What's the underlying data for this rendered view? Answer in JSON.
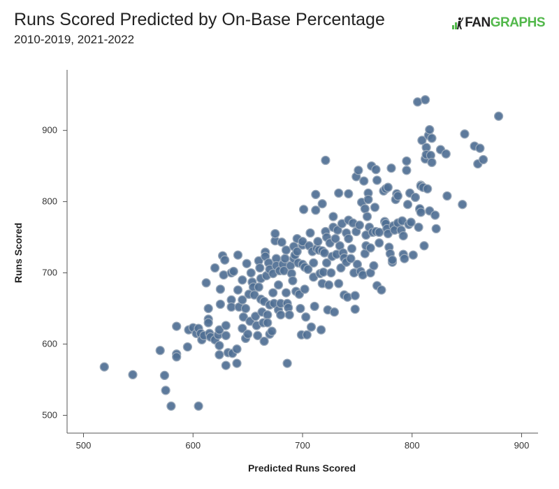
{
  "header": {
    "title": "Runs Scored Predicted by On-Base Percentage",
    "subtitle": "2010-2019, 2021-2022"
  },
  "logo": {
    "fan": "FAN",
    "graphs": "GRAPHS"
  },
  "colors": {
    "point_fill": "#4f6f94",
    "point_stroke": "#9aa9ba",
    "brand_green": "#52b84b",
    "axis": "#555555"
  },
  "chart_data": {
    "type": "scatter",
    "title": "Runs Scored Predicted by On-Base Percentage",
    "subtitle": "2010-2019, 2021-2022",
    "xlabel": "Predicted Runs Scored",
    "ylabel": "Runs Scored",
    "xlim": [
      485,
      915
    ],
    "ylim": [
      475,
      985
    ],
    "xticks": [
      500,
      600,
      700,
      800,
      900
    ],
    "yticks": [
      500,
      600,
      700,
      800,
      900
    ],
    "grid": false,
    "points": [
      [
        519,
        568
      ],
      [
        545,
        557
      ],
      [
        570,
        591
      ],
      [
        574,
        556
      ],
      [
        575,
        535
      ],
      [
        580,
        513
      ],
      [
        585,
        586
      ],
      [
        585,
        582
      ],
      [
        585,
        625
      ],
      [
        595,
        596
      ],
      [
        596,
        620
      ],
      [
        600,
        623
      ],
      [
        603,
        615
      ],
      [
        605,
        622
      ],
      [
        605,
        513
      ],
      [
        607,
        615
      ],
      [
        608,
        606
      ],
      [
        610,
        612
      ],
      [
        612,
        686
      ],
      [
        614,
        650
      ],
      [
        614,
        635
      ],
      [
        614,
        630
      ],
      [
        615,
        615
      ],
      [
        616,
        610
      ],
      [
        620,
        606
      ],
      [
        620,
        707
      ],
      [
        623,
        613
      ],
      [
        624,
        620
      ],
      [
        624,
        598
      ],
      [
        624,
        585
      ],
      [
        625,
        677
      ],
      [
        625,
        656
      ],
      [
        627,
        724
      ],
      [
        628,
        697
      ],
      [
        629,
        718
      ],
      [
        630,
        612
      ],
      [
        630,
        626
      ],
      [
        630,
        570
      ],
      [
        632,
        588
      ],
      [
        635,
        700
      ],
      [
        635,
        662
      ],
      [
        635,
        652
      ],
      [
        636,
        587
      ],
      [
        637,
        702
      ],
      [
        640,
        573
      ],
      [
        640,
        593
      ],
      [
        641,
        676
      ],
      [
        641,
        725
      ],
      [
        642,
        652
      ],
      [
        645,
        662
      ],
      [
        645,
        690
      ],
      [
        645,
        622
      ],
      [
        646,
        638
      ],
      [
        648,
        650
      ],
      [
        648,
        608
      ],
      [
        649,
        713
      ],
      [
        650,
        614
      ],
      [
        651,
        670
      ],
      [
        652,
        632
      ],
      [
        653,
        700
      ],
      [
        654,
        687
      ],
      [
        655,
        680
      ],
      [
        656,
        669
      ],
      [
        657,
        639
      ],
      [
        658,
        626
      ],
      [
        659,
        612
      ],
      [
        660,
        680
      ],
      [
        660,
        717
      ],
      [
        661,
        707
      ],
      [
        662,
        663
      ],
      [
        662,
        692
      ],
      [
        663,
        645
      ],
      [
        664,
        630
      ],
      [
        665,
        660
      ],
      [
        665,
        604
      ],
      [
        666,
        729
      ],
      [
        666,
        723
      ],
      [
        667,
        696
      ],
      [
        668,
        641
      ],
      [
        668,
        630
      ],
      [
        669,
        714
      ],
      [
        670,
        705
      ],
      [
        670,
        655
      ],
      [
        670,
        614
      ],
      [
        672,
        618
      ],
      [
        673,
        672
      ],
      [
        673,
        699
      ],
      [
        674,
        657
      ],
      [
        675,
        745
      ],
      [
        675,
        755
      ],
      [
        676,
        720
      ],
      [
        676,
        710
      ],
      [
        678,
        683
      ],
      [
        678,
        648
      ],
      [
        679,
        703
      ],
      [
        680,
        657
      ],
      [
        680,
        641
      ],
      [
        681,
        743
      ],
      [
        682,
        712
      ],
      [
        683,
        703
      ],
      [
        684,
        720
      ],
      [
        685,
        732
      ],
      [
        685,
        672
      ],
      [
        686,
        657
      ],
      [
        686,
        573
      ],
      [
        687,
        651
      ],
      [
        688,
        641
      ],
      [
        689,
        710
      ],
      [
        690,
        699
      ],
      [
        691,
        689
      ],
      [
        692,
        720
      ],
      [
        692,
        737
      ],
      [
        693,
        725
      ],
      [
        694,
        674
      ],
      [
        695,
        730
      ],
      [
        695,
        748
      ],
      [
        696,
        714
      ],
      [
        697,
        670
      ],
      [
        698,
        650
      ],
      [
        699,
        613
      ],
      [
        700,
        712
      ],
      [
        700,
        739
      ],
      [
        700,
        744
      ],
      [
        701,
        789
      ],
      [
        702,
        708
      ],
      [
        702,
        677
      ],
      [
        703,
        638
      ],
      [
        704,
        613
      ],
      [
        705,
        705
      ],
      [
        706,
        738
      ],
      [
        707,
        756
      ],
      [
        708,
        624
      ],
      [
        709,
        730
      ],
      [
        710,
        714
      ],
      [
        710,
        694
      ],
      [
        711,
        653
      ],
      [
        712,
        810
      ],
      [
        712,
        788
      ],
      [
        713,
        734
      ],
      [
        714,
        744
      ],
      [
        715,
        732
      ],
      [
        716,
        699
      ],
      [
        717,
        620
      ],
      [
        718,
        797
      ],
      [
        718,
        731
      ],
      [
        718,
        685
      ],
      [
        719,
        701
      ],
      [
        720,
        728
      ],
      [
        721,
        758
      ],
      [
        721,
        858
      ],
      [
        722,
        750
      ],
      [
        722,
        714
      ],
      [
        723,
        648
      ],
      [
        724,
        683
      ],
      [
        725,
        742
      ],
      [
        726,
        700
      ],
      [
        727,
        723
      ],
      [
        728,
        764
      ],
      [
        728,
        779
      ],
      [
        729,
        645
      ],
      [
        730,
        748
      ],
      [
        731,
        726
      ],
      [
        732,
        760
      ],
      [
        733,
        812
      ],
      [
        733,
        685
      ],
      [
        734,
        738
      ],
      [
        735,
        707
      ],
      [
        736,
        769
      ],
      [
        737,
        728
      ],
      [
        738,
        721
      ],
      [
        738,
        669
      ],
      [
        740,
        756
      ],
      [
        740,
        715
      ],
      [
        741,
        666
      ],
      [
        742,
        811
      ],
      [
        742,
        774
      ],
      [
        742,
        748
      ],
      [
        744,
        720
      ],
      [
        745,
        734
      ],
      [
        746,
        770
      ],
      [
        747,
        700
      ],
      [
        748,
        649
      ],
      [
        748,
        668
      ],
      [
        749,
        758
      ],
      [
        749,
        835
      ],
      [
        750,
        712
      ],
      [
        751,
        844
      ],
      [
        752,
        767
      ],
      [
        753,
        702
      ],
      [
        754,
        799
      ],
      [
        755,
        697
      ],
      [
        756,
        829
      ],
      [
        757,
        790
      ],
      [
        757,
        727
      ],
      [
        758,
        738
      ],
      [
        758,
        753
      ],
      [
        759,
        779
      ],
      [
        760,
        812
      ],
      [
        760,
        803
      ],
      [
        761,
        764
      ],
      [
        762,
        700
      ],
      [
        762,
        735
      ],
      [
        763,
        850
      ],
      [
        764,
        757
      ],
      [
        765,
        710
      ],
      [
        766,
        792
      ],
      [
        767,
        845
      ],
      [
        767,
        758
      ],
      [
        768,
        682
      ],
      [
        768,
        830
      ],
      [
        770,
        757
      ],
      [
        770,
        742
      ],
      [
        772,
        676
      ],
      [
        774,
        815
      ],
      [
        775,
        772
      ],
      [
        776,
        818
      ],
      [
        776,
        769
      ],
      [
        777,
        762
      ],
      [
        778,
        820
      ],
      [
        778,
        755
      ],
      [
        779,
        736
      ],
      [
        780,
        727
      ],
      [
        781,
        847
      ],
      [
        782,
        715
      ],
      [
        782,
        718
      ],
      [
        783,
        766
      ],
      [
        784,
        760
      ],
      [
        785,
        803
      ],
      [
        786,
        811
      ],
      [
        787,
        770
      ],
      [
        787,
        808
      ],
      [
        790,
        760
      ],
      [
        791,
        773
      ],
      [
        792,
        726
      ],
      [
        792,
        752
      ],
      [
        793,
        720
      ],
      [
        795,
        844
      ],
      [
        795,
        857
      ],
      [
        796,
        796
      ],
      [
        797,
        768
      ],
      [
        798,
        812
      ],
      [
        799,
        771
      ],
      [
        801,
        725
      ],
      [
        803,
        806
      ],
      [
        805,
        940
      ],
      [
        806,
        764
      ],
      [
        807,
        789
      ],
      [
        807,
        790
      ],
      [
        808,
        823
      ],
      [
        808,
        785
      ],
      [
        808,
        822
      ],
      [
        809,
        886
      ],
      [
        810,
        820
      ],
      [
        811,
        738
      ],
      [
        812,
        860
      ],
      [
        812,
        943
      ],
      [
        813,
        876
      ],
      [
        813,
        866
      ],
      [
        814,
        818
      ],
      [
        815,
        893
      ],
      [
        816,
        787
      ],
      [
        816,
        901
      ],
      [
        817,
        865
      ],
      [
        818,
        889
      ],
      [
        818,
        855
      ],
      [
        821,
        781
      ],
      [
        822,
        762
      ],
      [
        826,
        873
      ],
      [
        831,
        867
      ],
      [
        832,
        808
      ],
      [
        846,
        796
      ],
      [
        848,
        895
      ],
      [
        857,
        878
      ],
      [
        860,
        853
      ],
      [
        862,
        875
      ],
      [
        865,
        859
      ],
      [
        879,
        920
      ]
    ]
  }
}
